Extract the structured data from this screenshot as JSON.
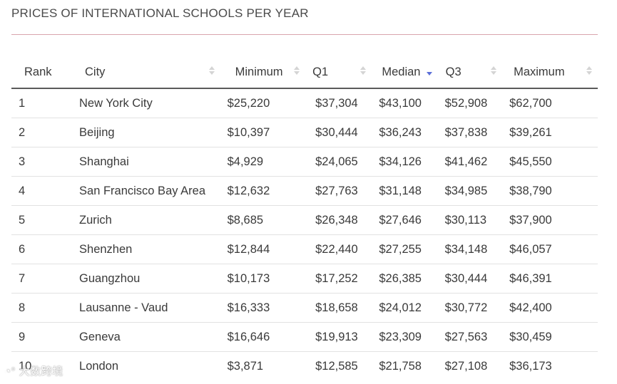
{
  "title": "PRICES OF INTERNATIONAL SCHOOLS PER YEAR",
  "columns": [
    "Rank",
    "City",
    "Minimum",
    "Q1",
    "Median",
    "Q3",
    "Maximum"
  ],
  "sorted_column": "Median",
  "sort_direction": "descending",
  "accent_color": "#d9a5ad",
  "sort_active_color": "#5b6fd8",
  "rows": [
    {
      "rank": "1",
      "city": "New York City",
      "min": "$25,220",
      "q1": "$37,304",
      "median": "$43,100",
      "q3": "$52,908",
      "max": "$62,700"
    },
    {
      "rank": "2",
      "city": "Beijing",
      "min": "$10,397",
      "q1": "$30,444",
      "median": "$36,243",
      "q3": "$37,838",
      "max": "$39,261"
    },
    {
      "rank": "3",
      "city": "Shanghai",
      "min": "$4,929",
      "q1": "$24,065",
      "median": "$34,126",
      "q3": "$41,462",
      "max": "$45,550"
    },
    {
      "rank": "4",
      "city": "San Francisco Bay Area",
      "min": "$12,632",
      "q1": "$27,763",
      "median": "$31,148",
      "q3": "$34,985",
      "max": "$38,790"
    },
    {
      "rank": "5",
      "city": "Zurich",
      "min": "$8,685",
      "q1": "$26,348",
      "median": "$27,646",
      "q3": "$30,113",
      "max": "$37,900"
    },
    {
      "rank": "6",
      "city": "Shenzhen",
      "min": "$12,844",
      "q1": "$22,440",
      "median": "$27,255",
      "q3": "$34,148",
      "max": "$46,057"
    },
    {
      "rank": "7",
      "city": "Guangzhou",
      "min": "$10,173",
      "q1": "$17,252",
      "median": "$26,385",
      "q3": "$30,444",
      "max": "$46,391"
    },
    {
      "rank": "8",
      "city": "Lausanne - Vaud",
      "min": "$16,333",
      "q1": "$18,658",
      "median": "$24,012",
      "q3": "$30,772",
      "max": "$42,400"
    },
    {
      "rank": "9",
      "city": "Geneva",
      "min": "$16,646",
      "q1": "$19,913",
      "median": "$23,309",
      "q3": "$27,563",
      "max": "$30,459"
    },
    {
      "rank": "10",
      "city": "London",
      "min": "$3,871",
      "q1": "$12,585",
      "median": "$21,758",
      "q3": "$27,108",
      "max": "$36,173"
    }
  ],
  "watermark": "大数跨境"
}
